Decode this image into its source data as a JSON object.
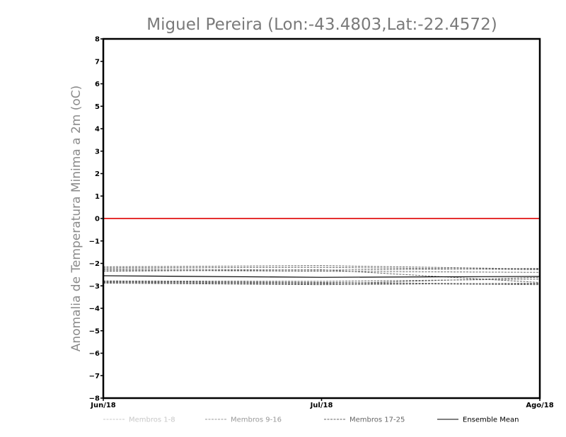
{
  "chart_data": {
    "type": "line",
    "title": "Miguel Pereira (Lon:-43.4803,Lat:-22.4572)",
    "ylabel": "Anomalia de Temperatura Minima a 2m (oC)",
    "xlabel": "",
    "categories": [
      "Jun/18",
      "Jul/18",
      "Ago/18"
    ],
    "ylim": [
      -8,
      8
    ],
    "yticks": [
      8,
      7,
      6,
      5,
      4,
      3,
      2,
      1,
      0,
      -1,
      -2,
      -3,
      -4,
      -5,
      -6,
      -7,
      -8
    ],
    "zero_line_color": "#e53030",
    "member_color": "#666666",
    "mean_color": "#000000",
    "grid": false,
    "legend_position": "bottom",
    "legend": [
      {
        "label": "Membros 1-8",
        "color": "#c8c8c8",
        "style": "dashed"
      },
      {
        "label": "Membros 9-16",
        "color": "#9a9a9a",
        "style": "dashed"
      },
      {
        "label": "Membros 17-25",
        "color": "#666666",
        "style": "dashed"
      },
      {
        "label": "Ensemble Mean",
        "color": "#000000",
        "style": "solid"
      }
    ],
    "members": [
      [
        -2.15,
        -2.1,
        -2.25
      ],
      [
        -2.2,
        -2.18,
        -2.28
      ],
      [
        -2.25,
        -2.3,
        -2.22
      ],
      [
        -2.3,
        -2.35,
        -2.4
      ],
      [
        -2.35,
        -2.28,
        -2.85
      ],
      [
        -2.78,
        -2.8,
        -2.7
      ],
      [
        -2.8,
        -2.85,
        -2.92
      ],
      [
        -2.82,
        -2.88,
        -2.95
      ],
      [
        -2.85,
        -2.92,
        -2.62
      ],
      [
        -2.88,
        -2.95,
        -2.88
      ]
    ],
    "ensemble_mean": [
      -2.55,
      -2.62,
      -2.58
    ]
  }
}
